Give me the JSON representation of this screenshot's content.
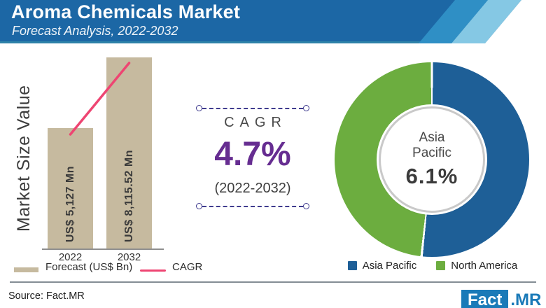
{
  "header": {
    "title": "Aroma Chemicals Market",
    "subtitle": "Forecast Analysis, 2022-2032"
  },
  "bar_chart": {
    "y_axis_label": "Market Size Value",
    "bars": [
      {
        "year": "2022",
        "value_label": "US$ 5,127 Mn"
      },
      {
        "year": "2032",
        "value_label": "US$ 8,115.52 Mn"
      }
    ],
    "legend": {
      "forecast_label": "Forecast (US$ Bn)",
      "cagr_label": "CAGR"
    }
  },
  "cagr_panel": {
    "heading": "CAGR",
    "value": "4.7%",
    "period": "(2022-2032)"
  },
  "donut_chart": {
    "center_label_lines": [
      "Asia",
      "Pacific"
    ],
    "center_value": "6.1%",
    "legend": [
      {
        "label": "Asia Pacific"
      },
      {
        "label": "North America"
      }
    ]
  },
  "footer": {
    "source": "Source: Fact.MR",
    "logo": {
      "fact": "Fact",
      "mr": ".MR"
    }
  },
  "colors": {
    "header_blue": "#1c67a5",
    "stripe_mid_blue": "#2f8fc5",
    "stripe_light_blue": "#85c8e4",
    "bar_tan": "#c6ba9f",
    "cagr_pink": "#ee4572",
    "cagr_purple": "#662d91",
    "dash_indigo": "#3f3b8e",
    "donut_blue": "#1e5f97",
    "donut_green": "#6cad3f",
    "logo_blue": "#1a7ab8"
  },
  "chart_data": [
    {
      "type": "bar",
      "title": "Aroma Chemicals Market — Market Size Value",
      "categories": [
        "2022",
        "2032"
      ],
      "values": [
        5127,
        8115.52
      ],
      "unit": "US$ Mn",
      "data_labels": [
        "US$ 5,127 Mn",
        "US$ 8,115.52 Mn"
      ],
      "ylabel": "Market Size Value",
      "legend_entries": [
        "Forecast (US$ Bn)",
        "CAGR"
      ],
      "cagr_line": {
        "from": "2022",
        "to": "2032",
        "cagr_pct": 4.7
      }
    },
    {
      "type": "pie",
      "title": "Regional share (donut)",
      "labels": [
        "Asia Pacific",
        "North America"
      ],
      "values": [
        51.7,
        48.3
      ],
      "values_estimated_from_arc": true,
      "center_annotation": "Asia Pacific 6.1%",
      "legend_position": "bottom"
    }
  ]
}
